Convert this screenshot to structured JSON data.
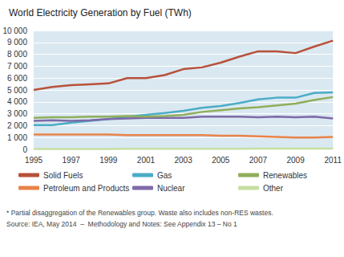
{
  "chart_data": {
    "type": "line",
    "title": "World Electricity Generation by Fuel (TWh)",
    "categories": [
      "1995",
      null,
      "1997",
      null,
      "1999",
      null,
      "2001",
      null,
      "2003",
      null,
      "2005",
      null,
      "2007",
      null,
      "2009",
      null,
      "2011"
    ],
    "series": [
      {
        "name": "Solid Fuels",
        "color": "#b8513a",
        "values": [
          5000,
          5250,
          5400,
          5480,
          5550,
          6000,
          6000,
          6250,
          6750,
          6900,
          7300,
          7800,
          8250,
          8250,
          8100,
          8650,
          9150
        ]
      },
      {
        "name": "Petroleum and Products",
        "color": "#e8834a",
        "values": [
          1250,
          1250,
          1250,
          1250,
          1250,
          1200,
          1200,
          1200,
          1200,
          1200,
          1150,
          1150,
          1100,
          1050,
          1000,
          1000,
          1050
        ]
      },
      {
        "name": "Gas",
        "color": "#4bacc6",
        "values": [
          2050,
          2050,
          2250,
          2400,
          2550,
          2750,
          2900,
          3050,
          3250,
          3500,
          3650,
          3900,
          4200,
          4350,
          4350,
          4750,
          4800
        ]
      },
      {
        "name": "Nuclear",
        "color": "#7d6aa8",
        "values": [
          2400,
          2450,
          2400,
          2450,
          2550,
          2600,
          2650,
          2650,
          2650,
          2750,
          2750,
          2750,
          2700,
          2750,
          2700,
          2750,
          2600
        ]
      },
      {
        "name": "Renewables",
        "color": "#8fae5b",
        "values": [
          2650,
          2700,
          2700,
          2750,
          2750,
          2800,
          2750,
          2800,
          2900,
          3150,
          3300,
          3450,
          3550,
          3700,
          3850,
          4150,
          4400
        ]
      },
      {
        "name": "Other",
        "color": "#c6dfa2",
        "values": [
          40,
          40,
          40,
          40,
          40,
          50,
          50,
          50,
          50,
          50,
          50,
          50,
          60,
          60,
          60,
          60,
          60
        ]
      }
    ],
    "ylim": [
      0,
      10000
    ],
    "yticks": [
      0,
      {
        "value": 1000,
        "label": "1 000"
      },
      {
        "value": 2000,
        "label": "2 000"
      },
      {
        "value": 3000,
        "label": "3 000"
      },
      {
        "value": 4000,
        "label": "4 000"
      },
      {
        "value": 5000,
        "label": "5 000"
      },
      {
        "value": 6000,
        "label": "6 000"
      },
      {
        "value": 7000,
        "label": "7 000"
      },
      {
        "value": 8000,
        "label": "8 000"
      },
      {
        "value": 9000,
        "label": "9 000"
      },
      {
        "value": 10000,
        "label": "10 000"
      }
    ],
    "grid": true,
    "legend": "bottom",
    "annotations": [
      "* Partial disaggregation of the Renewables group. Waste also includes non-RES wastes.",
      "Source: IEA, May 2014  –  Methodology and Notes: See Appendix 13 – No 1"
    ]
  }
}
